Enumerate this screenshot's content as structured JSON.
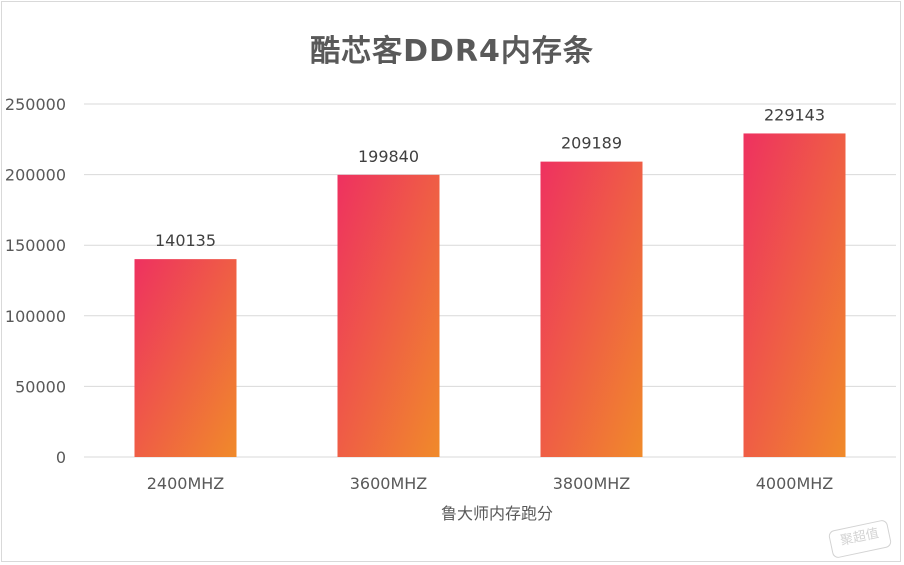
{
  "chart_data": {
    "type": "bar",
    "title": "酷芯客DDR4内存条",
    "xlabel": "鲁大师内存跑分",
    "ylabel": "",
    "categories": [
      "2400MHZ",
      "3600MHZ",
      "3800MHZ",
      "4000MHZ"
    ],
    "values": [
      140135,
      199840,
      209189,
      229143
    ],
    "ylim": [
      0,
      250000
    ],
    "yticks": [
      0,
      50000,
      100000,
      150000,
      200000,
      250000
    ],
    "grid": true,
    "legend": "none",
    "bar_gradient": {
      "top": "#ee3160",
      "bottom": "#f08a2a"
    },
    "gridline_color": "#d9d9d9",
    "text_color": "#595959"
  },
  "watermark": {
    "text": "聚超值"
  }
}
